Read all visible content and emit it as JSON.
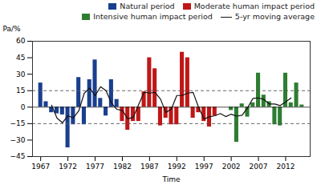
{
  "chart_data": {
    "type": "bar",
    "xlabel": "Time",
    "ylabel": "Pa/%",
    "x": [
      1967,
      1968,
      1969,
      1970,
      1971,
      1972,
      1973,
      1974,
      1975,
      1976,
      1977,
      1978,
      1979,
      1980,
      1981,
      1982,
      1983,
      1984,
      1985,
      1986,
      1987,
      1988,
      1989,
      1990,
      1991,
      1992,
      1993,
      1994,
      1995,
      1996,
      1997,
      1998,
      1999,
      2000,
      2001,
      2002,
      2003,
      2004,
      2005,
      2006,
      2007,
      2008,
      2009,
      2010,
      2011,
      2012,
      2013,
      2014,
      2015
    ],
    "series": [
      {
        "name": "Natural period",
        "type": "bar",
        "color": "#1A3F8F",
        "values": [
          22,
          5,
          -5,
          -6,
          -7,
          -37,
          -16,
          27,
          -16,
          25,
          43,
          8,
          -8,
          25,
          7,
          null,
          null,
          null,
          null,
          null,
          null,
          null,
          null,
          null,
          null,
          null,
          null,
          null,
          null,
          null,
          null,
          null,
          null,
          null,
          null,
          null,
          null,
          null,
          null,
          null,
          null,
          null,
          null,
          null,
          null,
          null,
          null,
          null,
          null
        ]
      },
      {
        "name": "Moderate human impact period",
        "type": "bar",
        "color": "#BF1717",
        "values": [
          null,
          null,
          null,
          null,
          null,
          null,
          null,
          null,
          null,
          null,
          null,
          null,
          null,
          null,
          null,
          -13,
          -21,
          -13,
          -13,
          14,
          45,
          35,
          -17,
          -10,
          -16,
          -16,
          50,
          45,
          -10,
          -5,
          -13,
          -18,
          -8,
          null,
          null,
          null,
          null,
          null,
          null,
          null,
          null,
          null,
          null,
          null,
          null,
          null,
          null,
          null,
          null
        ]
      },
      {
        "name": "Intensive human impact period",
        "type": "bar",
        "color": "#2E7D32",
        "values": [
          null,
          null,
          null,
          null,
          null,
          null,
          null,
          null,
          null,
          null,
          null,
          null,
          null,
          null,
          null,
          null,
          null,
          null,
          null,
          null,
          null,
          null,
          null,
          null,
          null,
          null,
          null,
          null,
          null,
          null,
          null,
          null,
          null,
          0,
          0,
          -3,
          -32,
          3,
          -9,
          4,
          31,
          11,
          5,
          -16,
          -17,
          31,
          4,
          22,
          2
        ]
      },
      {
        "name": "5-yr moving average",
        "type": "line",
        "color": "#111111",
        "line_style": "solid",
        "values": [
          null,
          null,
          1.8,
          -10,
          -14.2,
          -7.8,
          -9.8,
          -3.4,
          12.6,
          17.4,
          10.4,
          18.6,
          15,
          3.8,
          -2,
          -3,
          -10.6,
          -9.2,
          2.4,
          13.6,
          12.8,
          13.4,
          7.4,
          -4.8,
          -1.8,
          10.6,
          10.6,
          12.8,
          13.4,
          -0.2,
          -10.8,
          -8.8,
          -7.8,
          -5.8,
          -8.6,
          -6.4,
          -8.2,
          -7.4,
          -0.6,
          8,
          8.4,
          7,
          2.8,
          2.8,
          1.4,
          4.8,
          8.4,
          null,
          null
        ]
      }
    ],
    "hlines": [
      {
        "y": 15,
        "color": "#555555",
        "line_style": "dashed"
      },
      {
        "y": -15,
        "color": "#555555",
        "line_style": "dashed"
      },
      {
        "y": 0,
        "color": "#000000",
        "line_style": "solid"
      }
    ],
    "xlim": [
      1965.5,
      2016.5
    ],
    "xticks": [
      1967,
      1972,
      1977,
      1982,
      1987,
      1992,
      1997,
      2002,
      2007,
      2012
    ],
    "ylim": [
      -45,
      60
    ],
    "yticks": [
      -45,
      -30,
      -15,
      0,
      15,
      30,
      45,
      60
    ],
    "grid": false,
    "legend": "upper right"
  }
}
